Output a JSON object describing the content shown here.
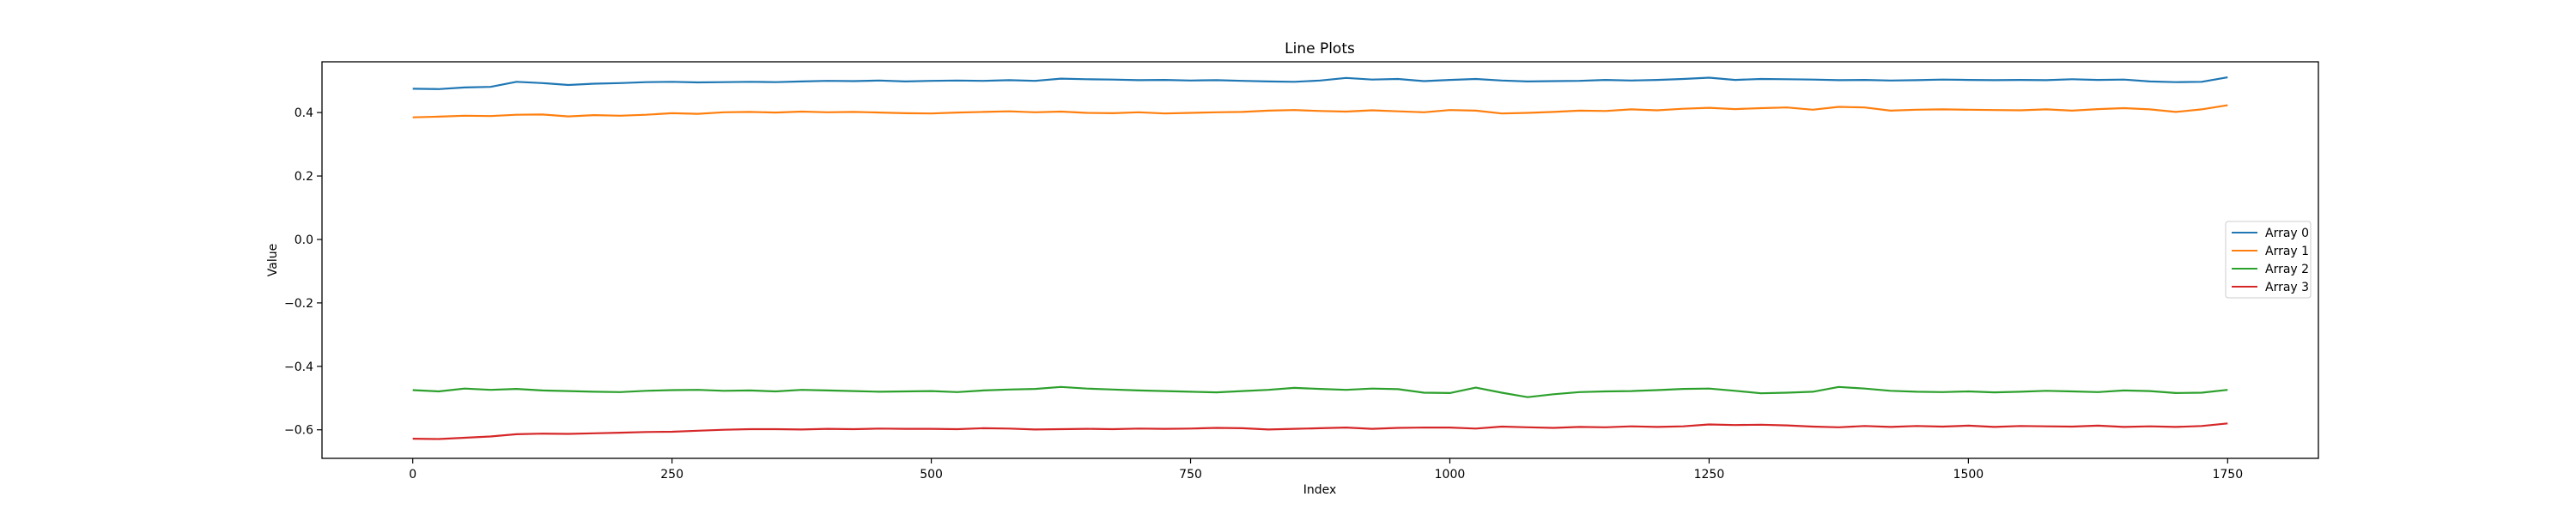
{
  "chart_data": {
    "type": "line",
    "title": "Line Plots",
    "xlabel": "Index",
    "ylabel": "Value",
    "xlim": [
      -87.5,
      1837.5
    ],
    "ylim": [
      -0.69,
      0.56
    ],
    "xticks": [
      0,
      250,
      500,
      750,
      1000,
      1250,
      1500,
      1750
    ],
    "yticks": [
      -0.6,
      -0.4,
      -0.2,
      0.0,
      0.2,
      0.4
    ],
    "ytick_labels": [
      "−0.6",
      "−0.4",
      "−0.2",
      "0.0",
      "0.2",
      "0.4"
    ],
    "grid": false,
    "legend_position": "center-right",
    "x": [
      0,
      25,
      50,
      75,
      100,
      125,
      150,
      175,
      200,
      225,
      250,
      275,
      300,
      325,
      350,
      375,
      400,
      425,
      450,
      475,
      500,
      525,
      550,
      575,
      600,
      625,
      650,
      675,
      700,
      725,
      750,
      775,
      800,
      825,
      850,
      875,
      900,
      925,
      950,
      975,
      1000,
      1025,
      1050,
      1075,
      1100,
      1125,
      1150,
      1175,
      1200,
      1225,
      1250,
      1275,
      1300,
      1325,
      1350,
      1375,
      1400,
      1425,
      1450,
      1475,
      1500,
      1525,
      1550,
      1575,
      1600,
      1625,
      1650,
      1675,
      1700,
      1725,
      1750
    ],
    "series": [
      {
        "name": "Array 0",
        "color": "#1f77b4",
        "values": [
          0.475,
          0.474,
          0.479,
          0.481,
          0.497,
          0.493,
          0.487,
          0.491,
          0.493,
          0.496,
          0.497,
          0.495,
          0.496,
          0.497,
          0.496,
          0.498,
          0.5,
          0.499,
          0.501,
          0.498,
          0.5,
          0.501,
          0.5,
          0.502,
          0.5,
          0.507,
          0.505,
          0.504,
          0.502,
          0.503,
          0.501,
          0.502,
          0.5,
          0.498,
          0.497,
          0.501,
          0.509,
          0.504,
          0.506,
          0.499,
          0.503,
          0.506,
          0.501,
          0.498,
          0.499,
          0.5,
          0.503,
          0.501,
          0.503,
          0.506,
          0.51,
          0.503,
          0.506,
          0.505,
          0.504,
          0.502,
          0.503,
          0.501,
          0.502,
          0.504,
          0.503,
          0.502,
          0.503,
          0.502,
          0.505,
          0.503,
          0.504,
          0.498,
          0.496,
          0.497,
          0.511
        ]
      },
      {
        "name": "Array 1",
        "color": "#ff7f0e",
        "values": [
          0.385,
          0.387,
          0.39,
          0.389,
          0.393,
          0.394,
          0.388,
          0.392,
          0.39,
          0.393,
          0.398,
          0.396,
          0.401,
          0.402,
          0.4,
          0.403,
          0.401,
          0.402,
          0.4,
          0.398,
          0.397,
          0.4,
          0.402,
          0.404,
          0.401,
          0.403,
          0.399,
          0.398,
          0.401,
          0.397,
          0.399,
          0.401,
          0.402,
          0.406,
          0.408,
          0.405,
          0.403,
          0.407,
          0.404,
          0.401,
          0.408,
          0.406,
          0.397,
          0.399,
          0.402,
          0.406,
          0.405,
          0.41,
          0.407,
          0.412,
          0.415,
          0.411,
          0.414,
          0.416,
          0.409,
          0.418,
          0.416,
          0.406,
          0.409,
          0.41,
          0.409,
          0.408,
          0.407,
          0.41,
          0.406,
          0.411,
          0.414,
          0.41,
          0.402,
          0.41,
          0.423
        ]
      },
      {
        "name": "Array 2",
        "color": "#2ca02c",
        "values": [
          -0.475,
          -0.479,
          -0.47,
          -0.474,
          -0.471,
          -0.476,
          -0.478,
          -0.48,
          -0.481,
          -0.477,
          -0.475,
          -0.474,
          -0.477,
          -0.476,
          -0.479,
          -0.474,
          -0.476,
          -0.478,
          -0.48,
          -0.479,
          -0.478,
          -0.481,
          -0.476,
          -0.473,
          -0.471,
          -0.465,
          -0.47,
          -0.473,
          -0.476,
          -0.478,
          -0.48,
          -0.482,
          -0.478,
          -0.474,
          -0.468,
          -0.471,
          -0.474,
          -0.47,
          -0.472,
          -0.483,
          -0.484,
          -0.467,
          -0.483,
          -0.497,
          -0.488,
          -0.481,
          -0.479,
          -0.478,
          -0.475,
          -0.471,
          -0.47,
          -0.477,
          -0.485,
          -0.483,
          -0.48,
          -0.465,
          -0.47,
          -0.477,
          -0.48,
          -0.481,
          -0.479,
          -0.482,
          -0.48,
          -0.477,
          -0.479,
          -0.481,
          -0.476,
          -0.478,
          -0.484,
          -0.483,
          -0.474
        ]
      },
      {
        "name": "Array 3",
        "color": "#d62728",
        "values": [
          -0.628,
          -0.629,
          -0.625,
          -0.621,
          -0.614,
          -0.612,
          -0.613,
          -0.611,
          -0.609,
          -0.607,
          -0.606,
          -0.603,
          -0.6,
          -0.598,
          -0.598,
          -0.599,
          -0.597,
          -0.598,
          -0.596,
          -0.597,
          -0.597,
          -0.598,
          -0.595,
          -0.596,
          -0.599,
          -0.598,
          -0.597,
          -0.598,
          -0.596,
          -0.597,
          -0.596,
          -0.594,
          -0.595,
          -0.599,
          -0.597,
          -0.595,
          -0.593,
          -0.597,
          -0.594,
          -0.593,
          -0.593,
          -0.596,
          -0.59,
          -0.592,
          -0.594,
          -0.591,
          -0.592,
          -0.589,
          -0.591,
          -0.589,
          -0.583,
          -0.585,
          -0.584,
          -0.586,
          -0.59,
          -0.592,
          -0.588,
          -0.591,
          -0.588,
          -0.59,
          -0.587,
          -0.591,
          -0.588,
          -0.589,
          -0.59,
          -0.587,
          -0.591,
          -0.589,
          -0.591,
          -0.588,
          -0.58
        ]
      }
    ]
  }
}
